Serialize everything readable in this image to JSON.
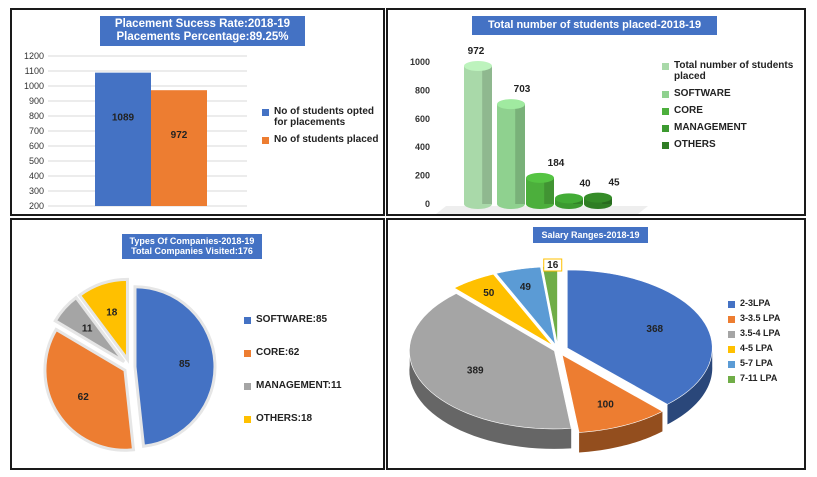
{
  "charts": {
    "placement": {
      "title": "Placement Sucess Rate:2018-19",
      "subtitle": "Placements Percentage:89.25%",
      "chart_data": {
        "type": "bar",
        "ylim": [
          200,
          1200
        ],
        "yticks": [
          200,
          300,
          400,
          500,
          600,
          700,
          800,
          900,
          1000,
          1100,
          1200
        ],
        "grid": true,
        "legend": "right",
        "series": [
          {
            "name": "No of students opted for placements",
            "value": 1089,
            "color": "#4472C4"
          },
          {
            "name": "No of students placed",
            "value": 972,
            "color": "#ED7D31"
          }
        ]
      }
    },
    "placed": {
      "title": "Total number of students  placed-2018-19",
      "chart_data": {
        "type": "bar",
        "ylim": [
          0,
          1000
        ],
        "yticks": [
          0,
          200,
          400,
          600,
          800,
          1000
        ],
        "legend": "right",
        "series": [
          {
            "name": "Total number of students placed",
            "value": 972,
            "color": "#a9d9a9"
          },
          {
            "name": "SOFTWARE",
            "value": 703,
            "color": "#8fd18f"
          },
          {
            "name": "CORE",
            "value": 184,
            "color": "#4caf3c"
          },
          {
            "name": "MANAGEMENT",
            "value": 40,
            "color": "#3c9a30"
          },
          {
            "name": "OTHERS",
            "value": 45,
            "color": "#2f7d24"
          }
        ]
      }
    },
    "companies": {
      "title": "Types Of Companies-2018-19",
      "subtitle": "Total Companies Visited:176",
      "chart_data": {
        "type": "pie",
        "legend": "right",
        "slices": [
          {
            "label": "85",
            "legend": "SOFTWARE:85",
            "value": 85,
            "color": "#4472C4"
          },
          {
            "label": "62",
            "legend": "CORE:62",
            "value": 62,
            "color": "#ED7D31"
          },
          {
            "label": "11",
            "legend": "MANAGEMENT:11",
            "value": 11,
            "color": "#A5A5A5"
          },
          {
            "label": "18",
            "legend": "OTHERS:18",
            "value": 18,
            "color": "#FFC000"
          }
        ]
      }
    },
    "salary": {
      "title": "Salary Ranges-2018-19",
      "chart_data": {
        "type": "pie",
        "legend": "right",
        "slices": [
          {
            "label": "368",
            "legend": "2-3LPA",
            "value": 368,
            "color": "#4472C4"
          },
          {
            "label": "100",
            "legend": "3-3.5 LPA",
            "value": 100,
            "color": "#ED7D31"
          },
          {
            "label": "389",
            "legend": "3.5-4 LPA",
            "value": 389,
            "color": "#A5A5A5"
          },
          {
            "label": "50",
            "legend": "4-5 LPA",
            "value": 50,
            "color": "#FFC000"
          },
          {
            "label": "49",
            "legend": "5-7 LPA",
            "value": 49,
            "color": "#5B9BD5"
          },
          {
            "label": "16",
            "legend": "7-11 LPA",
            "value": 16,
            "color": "#70AD47"
          }
        ]
      }
    }
  }
}
